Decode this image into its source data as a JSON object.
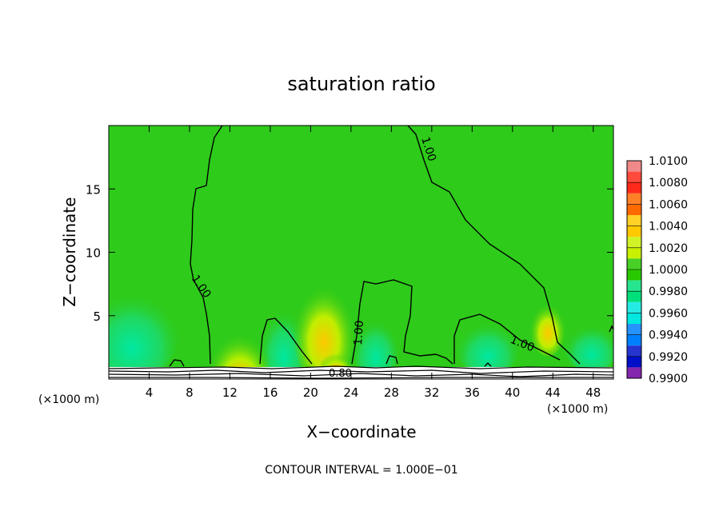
{
  "chart_data": {
    "type": "heatmap",
    "title": "saturation ratio",
    "xlabel": "X−coordinate",
    "ylabel": "Z−coordinate",
    "x_unit_left": "(×1000 m)",
    "x_unit_right": "(×1000 m)",
    "xlim": [
      0,
      50
    ],
    "ylim": [
      0,
      20
    ],
    "x_ticks": [
      4,
      8,
      12,
      16,
      20,
      24,
      28,
      32,
      36,
      40,
      44,
      48
    ],
    "y_ticks": [
      5,
      10,
      15
    ],
    "colorbar": {
      "labels": [
        "1.0100",
        "1.0080",
        "1.0060",
        "1.0040",
        "1.0020",
        "1.0000",
        "0.9980",
        "0.9960",
        "0.9940",
        "0.9920",
        "0.9900"
      ],
      "colors": [
        "#f08a8a",
        "#ff2a1a",
        "#ff6a00",
        "#ffc800",
        "#c8f000",
        "#28c800",
        "#00e07a",
        "#00e8e0",
        "#0080ff",
        "#0010c8",
        "#7000a0"
      ]
    },
    "contour_labels": [
      "1.00",
      "1.00",
      "1.00",
      "1.00",
      "0.80"
    ],
    "footer": "CONTOUR INTERVAL = 1.000E−01",
    "colors": {
      "background_field": "#2ecb1a",
      "warm_spot": "#ff6a00",
      "moist_spot": "#00e07a"
    }
  }
}
